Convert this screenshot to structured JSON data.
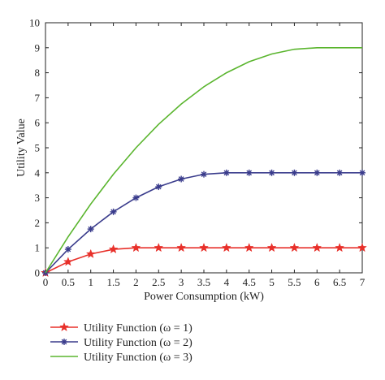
{
  "chart_data": {
    "type": "line",
    "xlabel": "Power Consumption (kW)",
    "ylabel": "Utility Value",
    "xlim": [
      0,
      7
    ],
    "ylim": [
      0,
      10
    ],
    "x_ticks": [
      "0",
      "0.5",
      "1",
      "1.5",
      "2",
      "2.5",
      "3",
      "3.5",
      "4",
      "4.5",
      "5",
      "5.5",
      "6",
      "6.5",
      "7"
    ],
    "y_ticks": [
      "0",
      "1",
      "2",
      "3",
      "4",
      "5",
      "6",
      "7",
      "8",
      "9",
      "10"
    ],
    "grid": false,
    "legend_position": "below",
    "series": [
      {
        "name": "Utility Function (ω = 1)",
        "color": "#e8302a",
        "marker": "star",
        "x": [
          0,
          0.5,
          1,
          1.5,
          2,
          2.5,
          3,
          3.5,
          4,
          4.5,
          5,
          5.5,
          6,
          6.5,
          7
        ],
        "y": [
          0,
          0.44,
          0.75,
          0.94,
          1,
          1,
          1,
          1,
          1,
          1,
          1,
          1,
          1,
          1,
          1
        ]
      },
      {
        "name": "Utility Function (ω = 2)",
        "color": "#3a3c8c",
        "marker": "asterisk",
        "x": [
          0,
          0.5,
          1,
          1.5,
          2,
          2.5,
          3,
          3.5,
          4,
          4.5,
          5,
          5.5,
          6,
          6.5,
          7
        ],
        "y": [
          0,
          0.94,
          1.75,
          2.44,
          3.0,
          3.44,
          3.75,
          3.94,
          4,
          4,
          4,
          4,
          4,
          4,
          4
        ]
      },
      {
        "name": "Utility Function (ω = 3)",
        "color": "#5ab52e",
        "marker": "none",
        "x": [
          0,
          0.5,
          1,
          1.5,
          2,
          2.5,
          3,
          3.5,
          4,
          4.5,
          5,
          5.5,
          6,
          6.5,
          7
        ],
        "y": [
          0,
          1.44,
          2.75,
          3.94,
          5.0,
          5.94,
          6.75,
          7.44,
          8.0,
          8.44,
          8.75,
          8.94,
          9,
          9,
          9
        ]
      }
    ]
  }
}
